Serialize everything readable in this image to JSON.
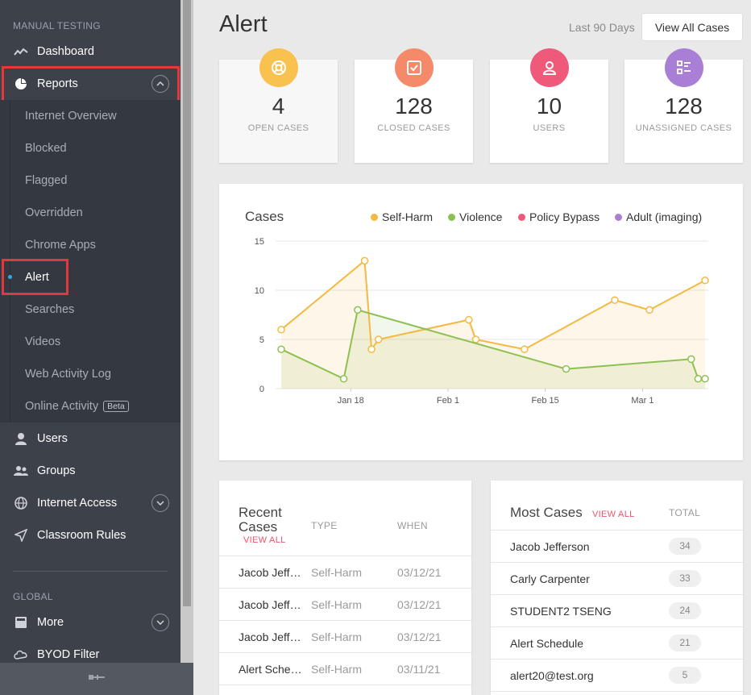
{
  "sidebar": {
    "section_title": "MANUAL TESTING",
    "items": [
      {
        "label": "Dashboard",
        "icon": "line-chart-icon"
      },
      {
        "label": "Reports",
        "icon": "pie-chart-icon"
      },
      {
        "label": "Users",
        "icon": "user-icon"
      },
      {
        "label": "Groups",
        "icon": "users-icon"
      },
      {
        "label": "Internet Access",
        "icon": "globe-icon"
      },
      {
        "label": "Classroom Rules",
        "icon": "send-icon"
      }
    ],
    "report_subitems": [
      "Internet Overview",
      "Blocked",
      "Flagged",
      "Overridden",
      "Chrome Apps",
      "Alert",
      "Searches",
      "Videos",
      "Web Activity Log",
      "Online Activity"
    ],
    "beta_badge": "Beta",
    "global_title": "GLOBAL",
    "global_items": [
      {
        "label": "More",
        "icon": "book-icon"
      },
      {
        "label": "BYOD Filter",
        "icon": "cloud-filter-icon"
      }
    ]
  },
  "header": {
    "title": "Alert",
    "range_label": "Last 90 Days",
    "view_all_button": "View All Cases"
  },
  "stats": [
    {
      "value": "4",
      "label": "OPEN CASES",
      "color": "#f9c14e",
      "icon": "lifebuoy-icon"
    },
    {
      "value": "128",
      "label": "CLOSED CASES",
      "color": "#f48a6a",
      "icon": "check-square-icon"
    },
    {
      "value": "10",
      "label": "USERS",
      "color": "#ef5a7a",
      "icon": "user-icon"
    },
    {
      "value": "128",
      "label": "UNASSIGNED CASES",
      "color": "#a97fd6",
      "icon": "checklist-icon"
    }
  ],
  "chart_data": {
    "type": "line",
    "title": "Cases",
    "ylim": [
      0,
      15
    ],
    "y_ticks": [
      "15",
      "10",
      "5",
      "0"
    ],
    "x_ticks": [
      "Jan 18",
      "Feb 1",
      "Feb 15",
      "Mar 1"
    ],
    "legend_position": "top-right",
    "series": [
      {
        "name": "Self-Harm",
        "color": "#f5b942",
        "x": [
          "2021-01-08",
          "2021-01-20",
          "2021-01-21",
          "2021-01-22",
          "2021-02-04",
          "2021-02-05",
          "2021-02-12",
          "2021-02-25",
          "2021-03-02",
          "2021-03-10"
        ],
        "values": [
          6,
          13,
          4,
          5,
          7,
          5,
          4,
          9,
          8,
          11
        ]
      },
      {
        "name": "Violence",
        "color": "#8cc152",
        "x": [
          "2021-01-08",
          "2021-01-17",
          "2021-01-19",
          "2021-02-18",
          "2021-03-08",
          "2021-03-09",
          "2021-03-10"
        ],
        "values": [
          4,
          1,
          8,
          2,
          3,
          1,
          1
        ]
      },
      {
        "name": "Policy Bypass",
        "color": "#ef5a7a",
        "x": [],
        "values": []
      },
      {
        "name": "Adult (imaging)",
        "color": "#a97fd6",
        "x": [],
        "values": []
      }
    ]
  },
  "recent_cases": {
    "title_line1": "Recent",
    "title_line2": "Cases",
    "view_all": "VIEW ALL",
    "col_type": "TYPE",
    "col_when": "WHEN",
    "rows": [
      {
        "name": "Jacob Jefferson",
        "type": "Self-Harm",
        "when": "03/12/21"
      },
      {
        "name": "Jacob Jefferson",
        "type": "Self-Harm",
        "when": "03/12/21"
      },
      {
        "name": "Jacob Jefferson",
        "type": "Self-Harm",
        "when": "03/12/21"
      },
      {
        "name": "Alert Schedule",
        "type": "Self-Harm",
        "when": "03/11/21"
      }
    ]
  },
  "most_cases": {
    "title": "Most Cases",
    "view_all": "VIEW ALL",
    "col_total": "TOTAL",
    "rows": [
      {
        "name": "Jacob Jefferson",
        "total": "34"
      },
      {
        "name": "Carly Carpenter",
        "total": "33"
      },
      {
        "name": "STUDENT2 TSENG",
        "total": "24"
      },
      {
        "name": "Alert Schedule",
        "total": "21"
      },
      {
        "name": "alert20@test.org",
        "total": "5"
      }
    ]
  }
}
